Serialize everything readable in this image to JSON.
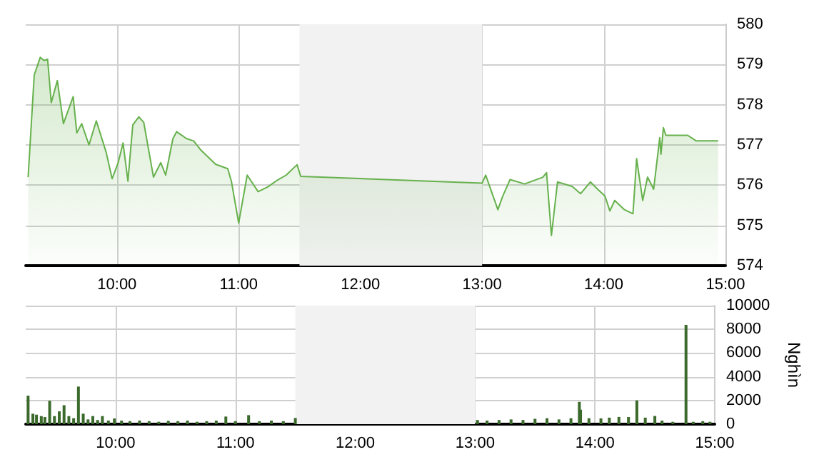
{
  "chart_data": [
    {
      "type": "area",
      "x": [
        9.27,
        9.32,
        9.37,
        9.4,
        9.43,
        9.46,
        9.51,
        9.56,
        9.64,
        9.67,
        9.71,
        9.77,
        9.83,
        9.91,
        9.96,
        10.01,
        10.05,
        10.09,
        10.13,
        10.18,
        10.22,
        10.3,
        10.36,
        10.4,
        10.46,
        10.49,
        10.57,
        10.63,
        10.69,
        10.81,
        10.91,
        10.94,
        11.0,
        11.07,
        11.16,
        11.24,
        11.32,
        11.39,
        11.48,
        11.51,
        13.0,
        13.03,
        13.13,
        13.17,
        13.23,
        13.35,
        13.5,
        13.53,
        13.57,
        13.62,
        13.74,
        13.81,
        13.89,
        13.95,
        14.01,
        14.05,
        14.09,
        14.17,
        14.24,
        14.27,
        14.32,
        14.36,
        14.41,
        14.46,
        14.47,
        14.49,
        14.51,
        14.69,
        14.76,
        14.94
      ],
      "series": [
        {
          "color": "#66b14c",
          "values": [
            576.2,
            578.74,
            579.18,
            579.1,
            579.13,
            578.05,
            578.6,
            577.53,
            578.2,
            577.3,
            577.53,
            577.0,
            577.6,
            576.83,
            576.16,
            576.56,
            577.05,
            576.1,
            577.5,
            577.7,
            577.56,
            576.2,
            576.56,
            576.25,
            577.16,
            577.33,
            577.16,
            577.1,
            576.87,
            576.52,
            576.41,
            576.1,
            575.06,
            576.25,
            575.84,
            575.96,
            576.13,
            576.25,
            576.51,
            576.22,
            576.05,
            576.25,
            575.39,
            575.73,
            576.14,
            576.03,
            576.2,
            576.31,
            574.75,
            576.08,
            575.97,
            575.79,
            576.08,
            575.9,
            575.73,
            575.36,
            575.62,
            575.39,
            575.29,
            576.66,
            575.62,
            576.2,
            575.9,
            577.18,
            576.77,
            577.43,
            577.24,
            577.24,
            577.1,
            577.1
          ]
        }
      ],
      "xlim": [
        9.25,
        15
      ],
      "xticks": [
        {
          "value": 10,
          "label": "10:00"
        },
        {
          "value": 11,
          "label": "11:00"
        },
        {
          "value": 12,
          "label": "12:00"
        },
        {
          "value": 13,
          "label": "13:00"
        },
        {
          "value": 14,
          "label": "14:00"
        },
        {
          "value": 15,
          "label": "15:00"
        }
      ],
      "ylim": [
        574,
        580
      ],
      "yticks": [
        574,
        575,
        576,
        577,
        578,
        579,
        580
      ],
      "bands": [
        {
          "axis": "x",
          "from": 11.5,
          "to": 13,
          "color": "#f2f2f2"
        }
      ],
      "grid": true
    },
    {
      "type": "bar",
      "ylabel": "Nghìn",
      "x": [
        9.27,
        9.31,
        9.34,
        9.38,
        9.41,
        9.45,
        9.49,
        9.53,
        9.57,
        9.61,
        9.65,
        9.69,
        9.73,
        9.77,
        9.81,
        9.85,
        9.89,
        9.94,
        9.99,
        10.05,
        10.12,
        10.2,
        10.28,
        10.36,
        10.44,
        10.52,
        10.6,
        10.68,
        10.76,
        10.84,
        10.92,
        11.0,
        11.11,
        11.2,
        11.3,
        11.4,
        11.5,
        13.02,
        13.1,
        13.2,
        13.3,
        13.4,
        13.5,
        13.6,
        13.7,
        13.8,
        13.87,
        13.88,
        13.95,
        14.05,
        14.12,
        14.2,
        14.28,
        14.35,
        14.42,
        14.5,
        14.56,
        14.65,
        14.76,
        14.82,
        14.9,
        14.96
      ],
      "series": [
        {
          "color": "#3b6a2c",
          "values": [
            2400,
            880,
            800,
            680,
            600,
            1970,
            680,
            1080,
            1600,
            680,
            500,
            3170,
            880,
            400,
            680,
            350,
            680,
            300,
            480,
            300,
            250,
            300,
            250,
            200,
            280,
            250,
            300,
            200,
            250,
            300,
            640,
            250,
            760,
            250,
            300,
            250,
            520,
            350,
            300,
            350,
            400,
            350,
            450,
            500,
            400,
            500,
            1880,
            1220,
            500,
            490,
            550,
            610,
            600,
            2000,
            550,
            690,
            300,
            200,
            8370,
            200,
            250,
            200
          ]
        }
      ],
      "xlim": [
        9.25,
        15
      ],
      "xticks": [
        {
          "value": 10,
          "label": "10:00"
        },
        {
          "value": 11,
          "label": "11:00"
        },
        {
          "value": 12,
          "label": "12:00"
        },
        {
          "value": 13,
          "label": "13:00"
        },
        {
          "value": 14,
          "label": "14:00"
        },
        {
          "value": 15,
          "label": "15:00"
        }
      ],
      "ylim": [
        0,
        10000
      ],
      "yticks": [
        0,
        2000,
        4000,
        6000,
        8000,
        10000
      ],
      "bands": [
        {
          "axis": "x",
          "from": 11.5,
          "to": 13,
          "color": "#f2f2f2"
        }
      ],
      "grid": true
    }
  ]
}
